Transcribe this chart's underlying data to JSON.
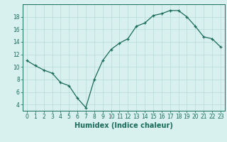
{
  "x": [
    0,
    1,
    2,
    3,
    4,
    5,
    6,
    7,
    8,
    9,
    10,
    11,
    12,
    13,
    14,
    15,
    16,
    17,
    18,
    19,
    20,
    21,
    22,
    23
  ],
  "y": [
    11.0,
    10.2,
    9.5,
    9.0,
    7.5,
    7.0,
    5.0,
    3.5,
    8.0,
    11.0,
    12.8,
    13.8,
    14.5,
    16.5,
    17.0,
    18.2,
    18.5,
    19.0,
    19.0,
    18.0,
    16.5,
    14.8,
    14.5,
    13.2
  ],
  "xlabel": "Humidex (Indice chaleur)",
  "xlim": [
    -0.5,
    23.5
  ],
  "ylim": [
    3,
    20
  ],
  "yticks": [
    4,
    6,
    8,
    10,
    12,
    14,
    16,
    18
  ],
  "xticks": [
    0,
    1,
    2,
    3,
    4,
    5,
    6,
    7,
    8,
    9,
    10,
    11,
    12,
    13,
    14,
    15,
    16,
    17,
    18,
    19,
    20,
    21,
    22,
    23
  ],
  "line_color": "#1a6b5a",
  "marker": "+",
  "bg_color": "#d8f0ee",
  "grid_color": "#b8dbd8",
  "tick_label_fontsize": 5.5,
  "xlabel_fontsize": 7
}
